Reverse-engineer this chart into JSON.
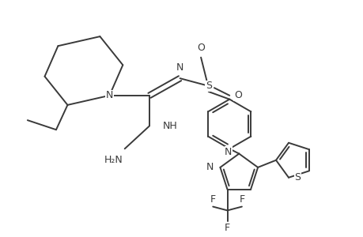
{
  "bg_color": "#ffffff",
  "line_color": "#3a3a3a",
  "line_width": 1.4,
  "figsize": [
    4.6,
    3.0
  ],
  "dpi": 100,
  "xlim": [
    0,
    9.2
  ],
  "ylim": [
    0,
    6.0
  ],
  "fontsize": 9
}
